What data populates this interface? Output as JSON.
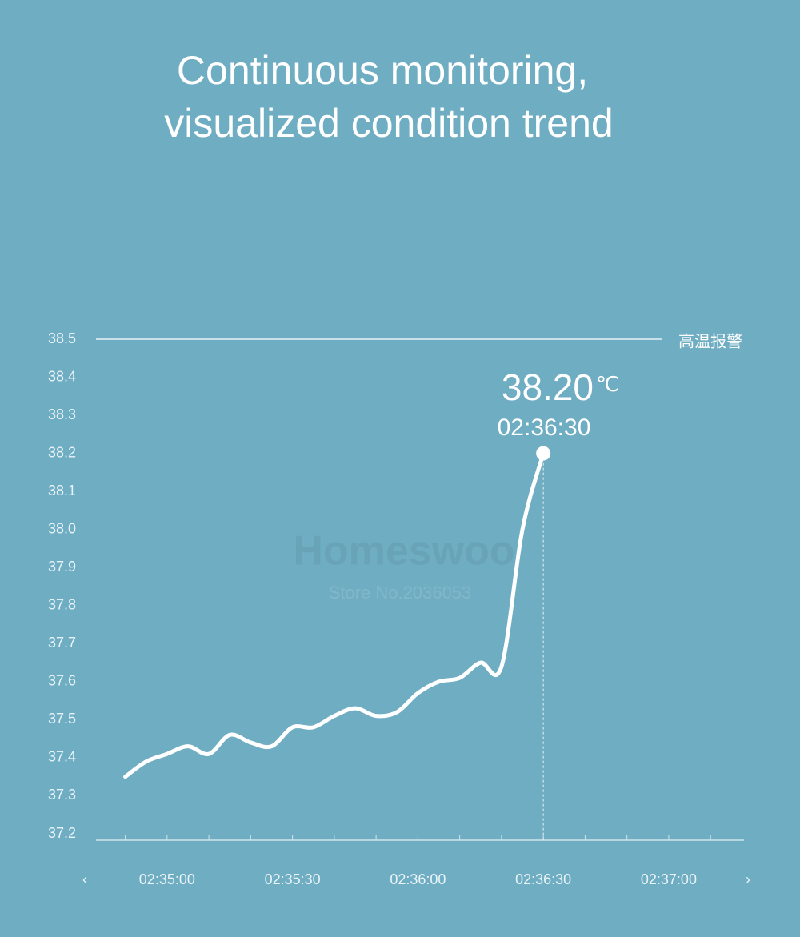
{
  "chart_data": {
    "type": "line",
    "title": [
      "Continuous monitoring,",
      "visualized condition trend"
    ],
    "x": [
      9290,
      9295,
      9300,
      9305,
      9310,
      9315,
      9320,
      9325,
      9330,
      9335,
      9340,
      9345,
      9350,
      9355,
      9360,
      9365,
      9370,
      9375,
      9380,
      9385,
      9390
    ],
    "series": [
      {
        "color": "#ffffff",
        "values": [
          37.35,
          37.39,
          37.41,
          37.43,
          37.41,
          37.46,
          37.44,
          37.43,
          37.48,
          37.48,
          37.51,
          37.53,
          37.51,
          37.52,
          37.57,
          37.6,
          37.61,
          37.65,
          37.64,
          38.0,
          38.2
        ]
      }
    ],
    "xlim": [
      9283,
      9438
    ],
    "xticks": [
      {
        "value": 9300,
        "label": "02:35:00"
      },
      {
        "value": 9330,
        "label": "02:35:30"
      },
      {
        "value": 9360,
        "label": "02:36:00"
      },
      {
        "value": 9390,
        "label": "02:36:30"
      },
      {
        "value": 9420,
        "label": "02:37:00"
      }
    ],
    "xminorticks": [
      9290,
      9310,
      9320,
      9340,
      9350,
      9370,
      9380,
      9400,
      9410,
      9430
    ],
    "ylim": [
      37.2,
      38.5
    ],
    "yticks": [
      37.2,
      37.3,
      37.4,
      37.5,
      37.6,
      37.7,
      37.8,
      37.9,
      {
        "value": 38,
        "label": "38.0"
      },
      38.1,
      38.2,
      38.3,
      38.4,
      38.5
    ],
    "threshold": {
      "value": 38.5,
      "label": "高温报警"
    },
    "highlight": {
      "value": 38.2,
      "label": "38.20",
      "unit": "℃",
      "time": "02:36:30"
    },
    "watermark": [
      "Homeswoo",
      "Store No.2036053"
    ],
    "nav": [
      "‹",
      "›"
    ]
  }
}
